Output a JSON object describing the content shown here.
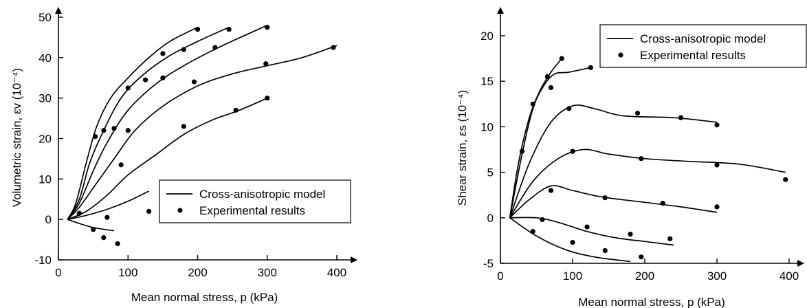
{
  "chart_data": [
    {
      "type": "line",
      "xlabel": "Mean normal stress, p (kPa)",
      "ylabel": "Volumetric strain, εv (10⁻⁴)",
      "xlim": [
        0,
        420
      ],
      "ylim": [
        -10,
        55
      ],
      "xticks": [
        0,
        100,
        200,
        300,
        400
      ],
      "yticks": [
        -10,
        0,
        10,
        20,
        30,
        40,
        50
      ],
      "legend": {
        "position": "bottom-right",
        "model_label": "Cross-anisotropic model",
        "experiment_label": "Experimental results"
      },
      "model_curves": [
        [
          [
            13,
            0
          ],
          [
            25,
            4
          ],
          [
            40,
            14
          ],
          [
            55,
            23
          ],
          [
            75,
            30
          ],
          [
            100,
            35
          ],
          [
            130,
            40
          ],
          [
            160,
            44
          ],
          [
            200,
            47.5
          ]
        ],
        [
          [
            13,
            0
          ],
          [
            30,
            5
          ],
          [
            45,
            14
          ],
          [
            65,
            22
          ],
          [
            90,
            30
          ],
          [
            120,
            35.5
          ],
          [
            160,
            40.5
          ],
          [
            200,
            44
          ],
          [
            245,
            47.5
          ]
        ],
        [
          [
            13,
            0
          ],
          [
            30,
            4
          ],
          [
            50,
            12
          ],
          [
            70,
            19
          ],
          [
            100,
            27
          ],
          [
            140,
            33.5
          ],
          [
            180,
            38
          ],
          [
            230,
            42.5
          ],
          [
            300,
            48
          ]
        ],
        [
          [
            13,
            0
          ],
          [
            30,
            3
          ],
          [
            55,
            9
          ],
          [
            80,
            15
          ],
          [
            110,
            22
          ],
          [
            150,
            28
          ],
          [
            200,
            33
          ],
          [
            250,
            36
          ],
          [
            300,
            38
          ],
          [
            350,
            40
          ],
          [
            400,
            43
          ]
        ],
        [
          [
            13,
            0
          ],
          [
            40,
            2
          ],
          [
            70,
            6
          ],
          [
            100,
            11
          ],
          [
            140,
            16
          ],
          [
            180,
            21
          ],
          [
            220,
            24.5
          ],
          [
            260,
            27
          ],
          [
            300,
            30
          ]
        ],
        [
          [
            13,
            0
          ],
          [
            40,
            1
          ],
          [
            70,
            2.5
          ],
          [
            100,
            4.5
          ],
          [
            130,
            7
          ]
        ],
        [
          [
            13,
            0
          ],
          [
            30,
            -1
          ],
          [
            50,
            -2
          ],
          [
            80,
            -2.8
          ]
        ]
      ],
      "experimental_points": [
        [
          200,
          47
        ],
        [
          150,
          41
        ],
        [
          100,
          32.5
        ],
        [
          65,
          22
        ],
        [
          245,
          47
        ],
        [
          180,
          42
        ],
        [
          125,
          34.5
        ],
        [
          80,
          22.5
        ],
        [
          53,
          20.5
        ],
        [
          300,
          47.5
        ],
        [
          225,
          42.5
        ],
        [
          150,
          35
        ],
        [
          100,
          22
        ],
        [
          395,
          42.5
        ],
        [
          298,
          38.5
        ],
        [
          195,
          34
        ],
        [
          90,
          13.5
        ],
        [
          300,
          30
        ],
        [
          255,
          27
        ],
        [
          180,
          23
        ],
        [
          30,
          1.5
        ],
        [
          70,
          0.5
        ],
        [
          130,
          2
        ],
        [
          50,
          -2.5
        ],
        [
          65,
          -4.5
        ],
        [
          85,
          -6
        ]
      ]
    },
    {
      "type": "line",
      "xlabel": "Mean normal stress, p (kPa)",
      "ylabel": "Shear strain, εs (10⁻⁴)",
      "xlim": [
        0,
        420
      ],
      "ylim": [
        -5,
        22
      ],
      "xticks": [
        0,
        100,
        200,
        300,
        400
      ],
      "yticks": [
        -5,
        0,
        5,
        10,
        15,
        20
      ],
      "legend": {
        "position": "top-right",
        "model_label": "Cross-anisotropic model",
        "experiment_label": "Experimental results"
      },
      "model_curves": [
        [
          [
            13,
            0
          ],
          [
            25,
            6
          ],
          [
            40,
            11
          ],
          [
            55,
            14
          ],
          [
            70,
            16
          ],
          [
            85,
            17.5
          ]
        ],
        [
          [
            13,
            0
          ],
          [
            30,
            7
          ],
          [
            45,
            12
          ],
          [
            60,
            14.5
          ],
          [
            75,
            15.8
          ],
          [
            95,
            16
          ],
          [
            125,
            16.5
          ]
        ],
        [
          [
            13,
            0
          ],
          [
            40,
            6
          ],
          [
            70,
            10.5
          ],
          [
            100,
            12.3
          ],
          [
            130,
            12
          ],
          [
            170,
            11.2
          ],
          [
            240,
            11
          ],
          [
            300,
            10.5
          ]
        ],
        [
          [
            13,
            0
          ],
          [
            45,
            4
          ],
          [
            80,
            6.5
          ],
          [
            115,
            7.5
          ],
          [
            150,
            7
          ],
          [
            200,
            6.5
          ],
          [
            260,
            6.2
          ],
          [
            330,
            5.9
          ],
          [
            395,
            5
          ]
        ],
        [
          [
            13,
            0
          ],
          [
            40,
            2
          ],
          [
            70,
            3.5
          ],
          [
            100,
            3
          ],
          [
            140,
            2.3
          ],
          [
            200,
            1.7
          ],
          [
            250,
            1.2
          ],
          [
            300,
            0.6
          ]
        ],
        [
          [
            13,
            0
          ],
          [
            50,
            0
          ],
          [
            80,
            -0.5
          ],
          [
            120,
            -1.5
          ],
          [
            160,
            -2.2
          ],
          [
            200,
            -2.6
          ],
          [
            240,
            -3
          ]
        ],
        [
          [
            13,
            0
          ],
          [
            50,
            -2
          ],
          [
            90,
            -3.5
          ],
          [
            130,
            -4.3
          ],
          [
            180,
            -4.8
          ]
        ]
      ],
      "experimental_points": [
        [
          85,
          17.5
        ],
        [
          65,
          15.5
        ],
        [
          45,
          12.5
        ],
        [
          125,
          16.5
        ],
        [
          70,
          14.3
        ],
        [
          30,
          7.3
        ],
        [
          95,
          12
        ],
        [
          190,
          11.5
        ],
        [
          250,
          11
        ],
        [
          300,
          10.2
        ],
        [
          100,
          7.3
        ],
        [
          195,
          6.5
        ],
        [
          300,
          5.8
        ],
        [
          395,
          4.2
        ],
        [
          70,
          3
        ],
        [
          145,
          2.2
        ],
        [
          225,
          1.6
        ],
        [
          300,
          1.2
        ],
        [
          58,
          -0.2
        ],
        [
          120,
          -1
        ],
        [
          180,
          -1.8
        ],
        [
          235,
          -2.3
        ],
        [
          45,
          -1.5
        ],
        [
          100,
          -2.7
        ],
        [
          145,
          -3.6
        ],
        [
          195,
          -4.3
        ]
      ]
    }
  ]
}
